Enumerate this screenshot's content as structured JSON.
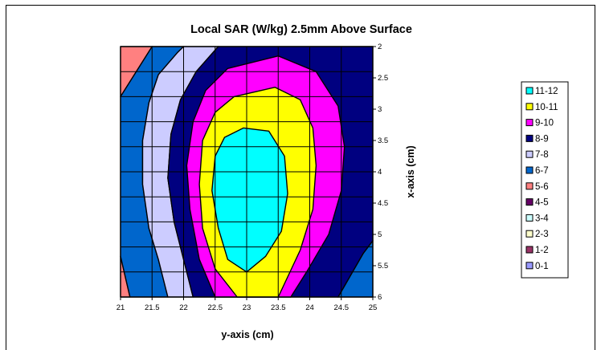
{
  "chart_data": {
    "type": "contour",
    "title": "Local SAR (W/kg) 2.5mm Above Surface",
    "xlabel": "y-axis (cm)",
    "ylabel": "x-axis (cm)",
    "x_ticks": [
      "21",
      "21.5",
      "22",
      "22.5",
      "23",
      "23.5",
      "24",
      "24.5",
      "25"
    ],
    "y_ticks": [
      "2",
      "2.5",
      "3",
      "3.5",
      "4",
      "4.5",
      "5",
      "5.5",
      "6"
    ],
    "xlim": [
      21,
      25
    ],
    "ylim": [
      2,
      6
    ],
    "grid": true,
    "legend_position": "right",
    "legend": [
      {
        "label": "11-12",
        "color": "#00ffff"
      },
      {
        "label": "10-11",
        "color": "#ffff00"
      },
      {
        "label": "9-10",
        "color": "#ff00ff"
      },
      {
        "label": "8-9",
        "color": "#000080"
      },
      {
        "label": "7-8",
        "color": "#ccccff"
      },
      {
        "label": "6-7",
        "color": "#0066cc"
      },
      {
        "label": "5-6",
        "color": "#ff8080"
      },
      {
        "label": "4-5",
        "color": "#660066"
      },
      {
        "label": "3-4",
        "color": "#ccffff"
      },
      {
        "label": "2-3",
        "color": "#ffffcc"
      },
      {
        "label": "1-2",
        "color": "#993366"
      },
      {
        "label": "0-1",
        "color": "#9999ff"
      }
    ],
    "bands": [
      {
        "range": "5-6",
        "color": "#ff8080",
        "points": [
          [
            21,
            2
          ],
          [
            21.5,
            2
          ],
          [
            21,
            2.8
          ]
        ]
      },
      {
        "range": "5-6",
        "color": "#ff8080",
        "points": [
          [
            21,
            5.35
          ],
          [
            21.15,
            6
          ],
          [
            21,
            6
          ]
        ]
      },
      {
        "range": "6-7",
        "color": "#0066cc",
        "points": [
          [
            21.5,
            2
          ],
          [
            22,
            2
          ],
          [
            21.9,
            2.1
          ],
          [
            21.6,
            2.45
          ],
          [
            21.45,
            2.9
          ],
          [
            21.35,
            3.5
          ],
          [
            21.35,
            4.2
          ],
          [
            21.45,
            4.9
          ],
          [
            21.6,
            5.4
          ],
          [
            21.75,
            6
          ],
          [
            21.15,
            6
          ],
          [
            21,
            5.35
          ],
          [
            21,
            2.8
          ]
        ]
      },
      {
        "range": "6-7",
        "color": "#0066cc",
        "points": [
          [
            24.45,
            6
          ],
          [
            24.85,
            5.3
          ],
          [
            25,
            5.1
          ],
          [
            25,
            6
          ]
        ]
      },
      {
        "range": "7-8",
        "color": "#ccccff",
        "points": [
          [
            22,
            2
          ],
          [
            22.55,
            2
          ],
          [
            22.2,
            2.4
          ],
          [
            21.95,
            2.85
          ],
          [
            21.8,
            3.4
          ],
          [
            21.75,
            4.1
          ],
          [
            21.85,
            4.8
          ],
          [
            22,
            5.4
          ],
          [
            22.15,
            6
          ],
          [
            21.75,
            6
          ],
          [
            21.6,
            5.4
          ],
          [
            21.45,
            4.9
          ],
          [
            21.35,
            4.2
          ],
          [
            21.35,
            3.5
          ],
          [
            21.45,
            2.9
          ],
          [
            21.6,
            2.45
          ],
          [
            21.9,
            2.1
          ]
        ]
      },
      {
        "range": "8-9",
        "color": "#000080",
        "points": [
          [
            22.55,
            2
          ],
          [
            25,
            2
          ],
          [
            25,
            5.1
          ],
          [
            24.85,
            5.3
          ],
          [
            24.45,
            6
          ],
          [
            22.15,
            6
          ],
          [
            22,
            5.4
          ],
          [
            21.85,
            4.8
          ],
          [
            21.75,
            4.1
          ],
          [
            21.8,
            3.4
          ],
          [
            21.95,
            2.85
          ],
          [
            22.2,
            2.4
          ]
        ]
      },
      {
        "range": "9-10",
        "color": "#ff00ff",
        "points": [
          [
            22.7,
            2.35
          ],
          [
            23.5,
            2.15
          ],
          [
            24.1,
            2.4
          ],
          [
            24.45,
            2.95
          ],
          [
            24.55,
            3.6
          ],
          [
            24.5,
            4.3
          ],
          [
            24.3,
            5
          ],
          [
            23.95,
            5.6
          ],
          [
            23.7,
            6
          ],
          [
            22.5,
            6
          ],
          [
            22.25,
            5.4
          ],
          [
            22.1,
            4.6
          ],
          [
            22.05,
            3.9
          ],
          [
            22.15,
            3.2
          ],
          [
            22.35,
            2.7
          ]
        ]
      },
      {
        "range": "10-11",
        "color": "#ffff00",
        "points": [
          [
            22.8,
            2.8
          ],
          [
            23.45,
            2.65
          ],
          [
            23.85,
            2.85
          ],
          [
            24.05,
            3.3
          ],
          [
            24.1,
            3.9
          ],
          [
            24.05,
            4.6
          ],
          [
            23.85,
            5.25
          ],
          [
            23.5,
            6
          ],
          [
            22.85,
            6
          ],
          [
            22.5,
            5.55
          ],
          [
            22.3,
            4.9
          ],
          [
            22.25,
            4.2
          ],
          [
            22.3,
            3.5
          ],
          [
            22.5,
            3.05
          ]
        ]
      },
      {
        "range": "11-12",
        "color": "#00ffff",
        "points": [
          [
            22.95,
            3.3
          ],
          [
            23.35,
            3.35
          ],
          [
            23.6,
            3.75
          ],
          [
            23.65,
            4.35
          ],
          [
            23.55,
            4.95
          ],
          [
            23.3,
            5.35
          ],
          [
            23,
            5.6
          ],
          [
            22.7,
            5.4
          ],
          [
            22.55,
            4.9
          ],
          [
            22.45,
            4.3
          ],
          [
            22.5,
            3.75
          ],
          [
            22.65,
            3.45
          ]
        ]
      }
    ]
  }
}
